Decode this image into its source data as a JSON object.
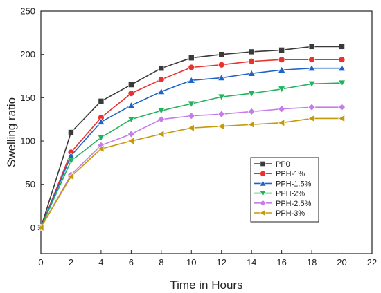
{
  "chart_data": {
    "type": "line",
    "title": "",
    "xlabel": "Time in Hours",
    "ylabel": "Swelling ratio",
    "xlim": [
      0,
      22
    ],
    "ylim": [
      -30,
      250
    ],
    "xticks": [
      0,
      2,
      4,
      6,
      8,
      10,
      12,
      14,
      16,
      18,
      20,
      22
    ],
    "yticks": [
      0,
      50,
      100,
      150,
      200,
      250
    ],
    "grid": false,
    "legend_position": "bottom-right",
    "x": [
      0,
      2,
      4,
      6,
      8,
      10,
      12,
      14,
      16,
      18,
      20
    ],
    "series": [
      {
        "name": "PP0",
        "color": "#3a3a3a",
        "marker": "square",
        "values": [
          0,
          110,
          146,
          165,
          184,
          196,
          200,
          203,
          205,
          209,
          209
        ]
      },
      {
        "name": "PPH-1%",
        "color": "#e8322e",
        "marker": "circle",
        "values": [
          0,
          87,
          127,
          155,
          171,
          185,
          188,
          192,
          194,
          194,
          194
        ]
      },
      {
        "name": "PPH-1.5%",
        "color": "#1f63c6",
        "marker": "triangle-up",
        "values": [
          0,
          83,
          122,
          141,
          157,
          170,
          173,
          178,
          182,
          184,
          184
        ]
      },
      {
        "name": "PPH-2%",
        "color": "#21b25c",
        "marker": "triangle-down",
        "values": [
          0,
          77,
          104,
          125,
          135,
          143,
          151,
          155,
          160,
          166,
          167
        ]
      },
      {
        "name": "PPH-2.5%",
        "color": "#c67ce8",
        "marker": "diamond",
        "values": [
          0,
          61,
          95,
          108,
          125,
          129,
          131,
          134,
          137,
          139,
          139
        ]
      },
      {
        "name": "PPH-3%",
        "color": "#c59a08",
        "marker": "triangle-left",
        "values": [
          0,
          59,
          91,
          100,
          108,
          115,
          117,
          119,
          121,
          126,
          126
        ]
      }
    ]
  }
}
